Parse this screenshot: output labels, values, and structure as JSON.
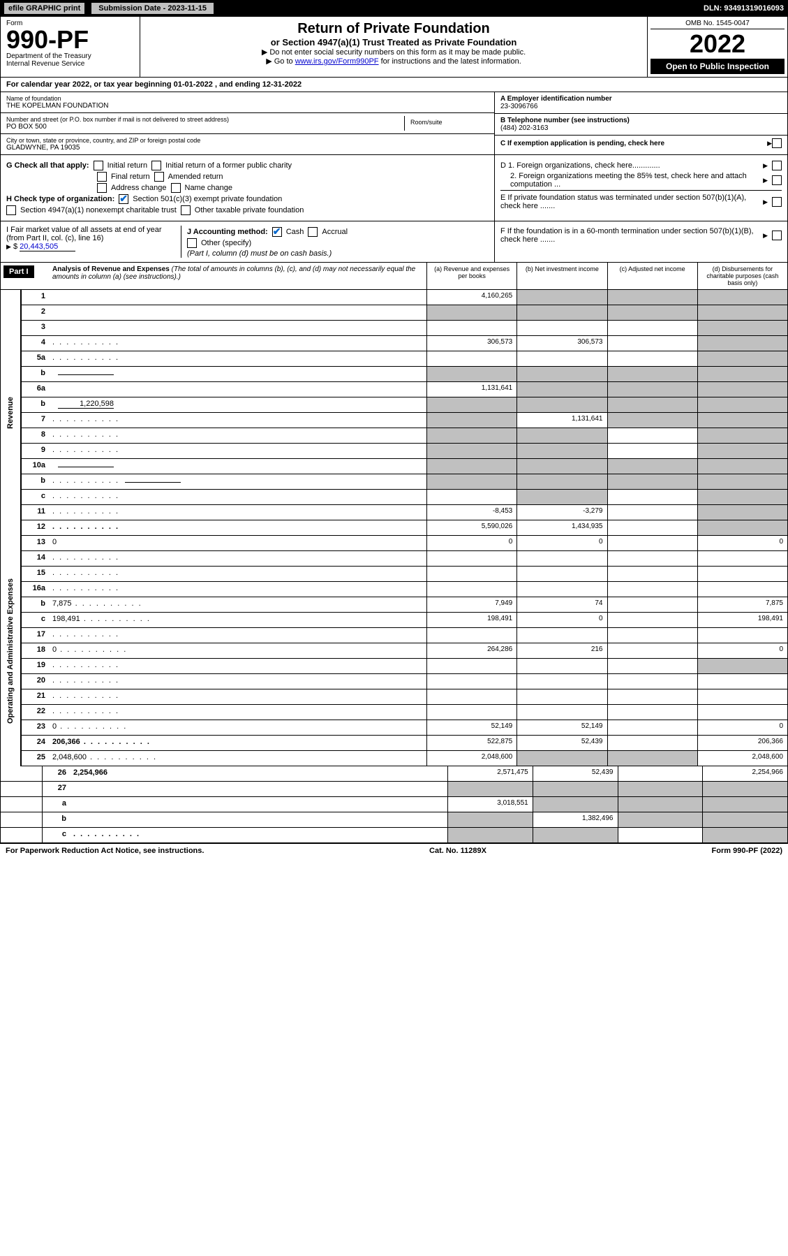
{
  "top": {
    "efile": "efile GRAPHIC print",
    "submission": "Submission Date - 2023-11-15",
    "dln": "DLN: 93491319016093"
  },
  "header": {
    "form_label": "Form",
    "form_num": "990-PF",
    "dept1": "Department of the Treasury",
    "dept2": "Internal Revenue Service",
    "title": "Return of Private Foundation",
    "subtitle": "or Section 4947(a)(1) Trust Treated as Private Foundation",
    "instr1": "▶ Do not enter social security numbers on this form as it may be made public.",
    "instr2a": "▶ Go to ",
    "instr2_link": "www.irs.gov/Form990PF",
    "instr2b": " for instructions and the latest information.",
    "omb": "OMB No. 1545-0047",
    "year": "2022",
    "open": "Open to Public Inspection"
  },
  "cal_year": "For calendar year 2022, or tax year beginning 01-01-2022            , and ending 12-31-2022",
  "info": {
    "name_lab": "Name of foundation",
    "name": "THE KOPELMAN FOUNDATION",
    "addr_lab": "Number and street (or P.O. box number if mail is not delivered to street address)",
    "addr": "PO BOX 500",
    "room_lab": "Room/suite",
    "city_lab": "City or town, state or province, country, and ZIP or foreign postal code",
    "city": "GLADWYNE, PA  19035",
    "ein_lab": "A Employer identification number",
    "ein": "23-3096766",
    "tel_lab": "B Telephone number (see instructions)",
    "tel": "(484) 202-3163",
    "c": "C If exemption application is pending, check here",
    "d1": "D 1. Foreign organizations, check here.............",
    "d2": "2. Foreign organizations meeting the 85% test, check here and attach computation ...",
    "e": "E  If private foundation status was terminated under section 507(b)(1)(A), check here .......",
    "f": "F  If the foundation is in a 60-month termination under section 507(b)(1)(B), check here .......",
    "g_lab": "G Check all that apply:",
    "g_opts": [
      "Initial return",
      "Initial return of a former public charity",
      "Final return",
      "Amended return",
      "Address change",
      "Name change"
    ],
    "h_lab": "H Check type of organization:",
    "h_opt1": "Section 501(c)(3) exempt private foundation",
    "h_opt2": "Section 4947(a)(1) nonexempt charitable trust",
    "h_opt3": "Other taxable private foundation",
    "i_lab": "I Fair market value of all assets at end of year (from Part II, col. (c), line 16)",
    "i_val": "20,443,505",
    "j_lab": "J Accounting method:",
    "j_cash": "Cash",
    "j_accrual": "Accrual",
    "j_other": "Other (specify)",
    "j_note": "(Part I, column (d) must be on cash basis.)"
  },
  "part1": {
    "hdr": "Part I",
    "title": "Analysis of Revenue and Expenses",
    "title_note": "(The total of amounts in columns (b), (c), and (d) may not necessarily equal the amounts in column (a) (see instructions).)",
    "col_a": "(a)   Revenue and expenses per books",
    "col_b": "(b)   Net investment income",
    "col_c": "(c)   Adjusted net income",
    "col_d": "(d)   Disbursements for charitable purposes (cash basis only)"
  },
  "sides": {
    "rev": "Revenue",
    "op": "Operating and Administrative Expenses"
  },
  "rows": [
    {
      "n": "1",
      "d": "",
      "a": "4,160,265",
      "b": "",
      "c": "",
      "bg": true,
      "cg": true,
      "dg": true
    },
    {
      "n": "2",
      "d": "",
      "sub": true,
      "a": "",
      "b": "",
      "c": "",
      "ag": true,
      "bg": true,
      "cg": true,
      "dg": true
    },
    {
      "n": "3",
      "d": "",
      "a": "",
      "b": "",
      "c": "",
      "dg": true
    },
    {
      "n": "4",
      "d": "",
      "dots": true,
      "a": "306,573",
      "b": "306,573",
      "c": "",
      "dg": true
    },
    {
      "n": "5a",
      "d": "",
      "dots": true,
      "a": "",
      "b": "",
      "c": "",
      "dg": true
    },
    {
      "n": "b",
      "d": "",
      "inline": "",
      "a": "",
      "b": "",
      "c": "",
      "ag": true,
      "bg": true,
      "cg": true,
      "dg": true
    },
    {
      "n": "6a",
      "d": "",
      "a": "1,131,641",
      "b": "",
      "c": "",
      "bg": true,
      "cg": true,
      "dg": true
    },
    {
      "n": "b",
      "d": "",
      "inline": "1,220,598",
      "a": "",
      "b": "",
      "c": "",
      "ag": true,
      "bg": true,
      "cg": true,
      "dg": true
    },
    {
      "n": "7",
      "d": "",
      "dots": true,
      "a": "",
      "b": "1,131,641",
      "c": "",
      "ag": true,
      "cg": true,
      "dg": true
    },
    {
      "n": "8",
      "d": "",
      "dots": true,
      "a": "",
      "b": "",
      "c": "",
      "ag": true,
      "bg": true,
      "dg": true
    },
    {
      "n": "9",
      "d": "",
      "dots": true,
      "a": "",
      "b": "",
      "c": "",
      "ag": true,
      "bg": true,
      "dg": true
    },
    {
      "n": "10a",
      "d": "",
      "inline": "",
      "a": "",
      "b": "",
      "c": "",
      "ag": true,
      "bg": true,
      "cg": true,
      "dg": true
    },
    {
      "n": "b",
      "d": "",
      "dots": true,
      "inline": "",
      "a": "",
      "b": "",
      "c": "",
      "ag": true,
      "bg": true,
      "cg": true,
      "dg": true
    },
    {
      "n": "c",
      "d": "",
      "dots": true,
      "a": "",
      "b": "",
      "c": "",
      "bg": true,
      "dg": true
    },
    {
      "n": "11",
      "d": "",
      "dots": true,
      "a": "-8,453",
      "b": "-3,279",
      "c": "",
      "dg": true
    },
    {
      "n": "12",
      "d": "",
      "dots": true,
      "bold": true,
      "a": "5,590,026",
      "b": "1,434,935",
      "c": "",
      "dg": true
    },
    {
      "n": "13",
      "d": "0",
      "a": "0",
      "b": "0",
      "c": ""
    },
    {
      "n": "14",
      "d": "",
      "dots": true,
      "a": "",
      "b": "",
      "c": ""
    },
    {
      "n": "15",
      "d": "",
      "dots": true,
      "a": "",
      "b": "",
      "c": ""
    },
    {
      "n": "16a",
      "d": "",
      "dots": true,
      "a": "",
      "b": "",
      "c": ""
    },
    {
      "n": "b",
      "d": "7,875",
      "dots": true,
      "a": "7,949",
      "b": "74",
      "c": ""
    },
    {
      "n": "c",
      "d": "198,491",
      "dots": true,
      "a": "198,491",
      "b": "0",
      "c": ""
    },
    {
      "n": "17",
      "d": "",
      "dots": true,
      "a": "",
      "b": "",
      "c": ""
    },
    {
      "n": "18",
      "d": "0",
      "dots": true,
      "a": "264,286",
      "b": "216",
      "c": ""
    },
    {
      "n": "19",
      "d": "",
      "dots": true,
      "a": "",
      "b": "",
      "c": "",
      "dg": true
    },
    {
      "n": "20",
      "d": "",
      "dots": true,
      "a": "",
      "b": "",
      "c": ""
    },
    {
      "n": "21",
      "d": "",
      "dots": true,
      "a": "",
      "b": "",
      "c": ""
    },
    {
      "n": "22",
      "d": "",
      "dots": true,
      "a": "",
      "b": "",
      "c": ""
    },
    {
      "n": "23",
      "d": "0",
      "dots": true,
      "a": "52,149",
      "b": "52,149",
      "c": ""
    },
    {
      "n": "24",
      "d": "206,366",
      "dots": true,
      "bold": true,
      "a": "522,875",
      "b": "52,439",
      "c": ""
    },
    {
      "n": "25",
      "d": "2,048,600",
      "dots": true,
      "a": "2,048,600",
      "b": "",
      "c": "",
      "bg": true,
      "cg": true
    },
    {
      "n": "26",
      "d": "2,254,966",
      "bold": true,
      "a": "2,571,475",
      "b": "52,439",
      "c": ""
    },
    {
      "n": "27",
      "d": "",
      "a": "",
      "b": "",
      "c": "",
      "ag": true,
      "bg": true,
      "cg": true,
      "dg": true
    },
    {
      "n": "a",
      "d": "",
      "bold": true,
      "a": "3,018,551",
      "b": "",
      "c": "",
      "bg": true,
      "cg": true,
      "dg": true
    },
    {
      "n": "b",
      "d": "",
      "bold": true,
      "a": "",
      "b": "1,382,496",
      "c": "",
      "ag": true,
      "cg": true,
      "dg": true
    },
    {
      "n": "c",
      "d": "",
      "dots": true,
      "bold": true,
      "a": "",
      "b": "",
      "c": "",
      "ag": true,
      "bg": true,
      "dg": true
    }
  ],
  "footer": {
    "left": "For Paperwork Reduction Act Notice, see instructions.",
    "mid": "Cat. No. 11289X",
    "right": "Form 990-PF (2022)"
  }
}
